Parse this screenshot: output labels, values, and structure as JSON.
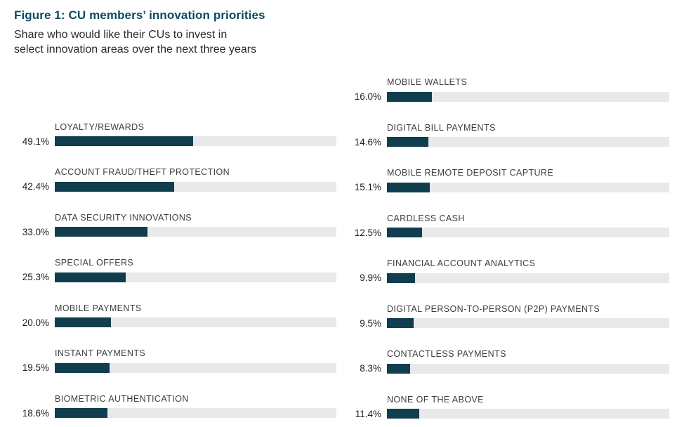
{
  "figure": {
    "title": "Figure 1: CU members’ innovation priorities",
    "subtitle_lines": [
      "Share who would like their CUs to invest in",
      "select innovation areas over the next three years"
    ]
  },
  "colors": {
    "title_text": "#0e4a60",
    "bar_fill": "#113e4e",
    "bar_track": "#e8e9ea",
    "category_label_text": "#3e3e3e",
    "percent_label_text": "#1f1f1f",
    "background": "#ffffff"
  },
  "chart_data": {
    "type": "bar",
    "orientation": "horizontal",
    "unit": "percent",
    "value_axis_range": [
      0,
      100
    ],
    "grid": false,
    "legend": false,
    "title": "Figure 1: CU members’ innovation priorities",
    "subtitle": "Share who would like their CUs to invest in select innovation areas over the next three years",
    "columns": [
      {
        "name": "left",
        "items": [
          {
            "label": "LOYALTY/REWARDS",
            "value": 49.1,
            "display": "49.1%"
          },
          {
            "label": "ACCOUNT FRAUD/THEFT PROTECTION",
            "value": 42.4,
            "display": "42.4%"
          },
          {
            "label": "DATA SECURITY INNOVATIONS",
            "value": 33.0,
            "display": "33.0%"
          },
          {
            "label": "SPECIAL OFFERS",
            "value": 25.3,
            "display": "25.3%"
          },
          {
            "label": "MOBILE PAYMENTS",
            "value": 20.0,
            "display": "20.0%"
          },
          {
            "label": "INSTANT PAYMENTS",
            "value": 19.5,
            "display": "19.5%"
          },
          {
            "label": "BIOMETRIC AUTHENTICATION",
            "value": 18.6,
            "display": "18.6%"
          }
        ]
      },
      {
        "name": "right",
        "items": [
          {
            "label": "MOBILE WALLETS",
            "value": 16.0,
            "display": "16.0%"
          },
          {
            "label": "DIGITAL BILL PAYMENTS",
            "value": 14.6,
            "display": "14.6%"
          },
          {
            "label": "MOBILE REMOTE DEPOSIT CAPTURE",
            "value": 15.1,
            "display": "15.1%"
          },
          {
            "label": "CARDLESS CASH",
            "value": 12.5,
            "display": "12.5%"
          },
          {
            "label": "FINANCIAL ACCOUNT ANALYTICS",
            "value": 9.9,
            "display": "9.9%"
          },
          {
            "label": "DIGITAL PERSON-TO-PERSON (P2P) PAYMENTS",
            "value": 9.5,
            "display": "9.5%"
          },
          {
            "label": "CONTACTLESS PAYMENTS",
            "value": 8.3,
            "display": "8.3%"
          },
          {
            "label": "NONE OF THE ABOVE",
            "value": 11.4,
            "display": "11.4%"
          }
        ]
      }
    ]
  }
}
